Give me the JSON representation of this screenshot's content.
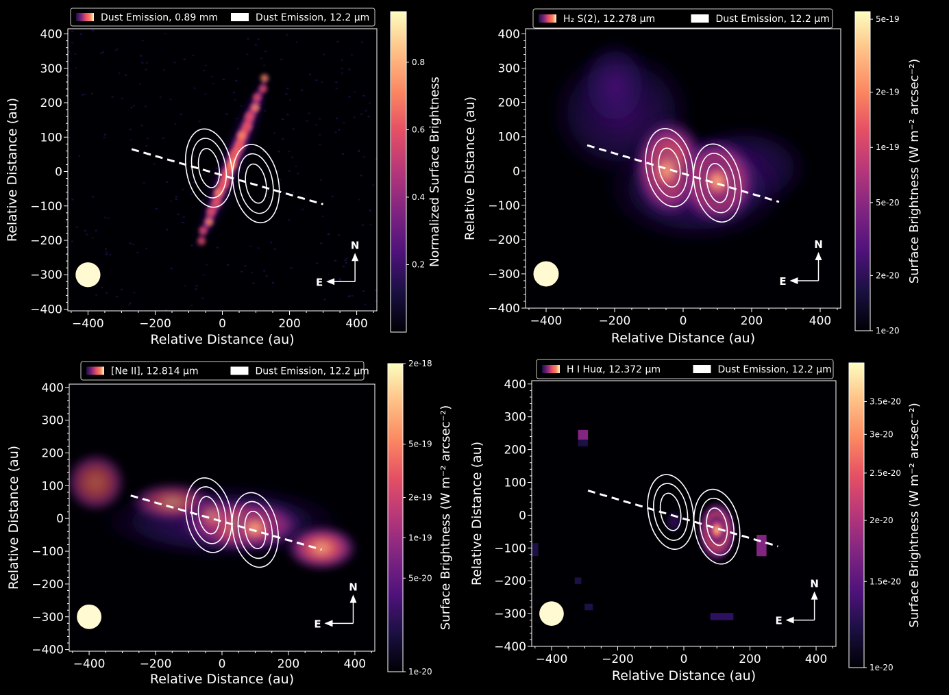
{
  "chart_data": [
    {
      "type": "heatmap",
      "panel": "top-left",
      "xlabel": "Relative Distance (au)",
      "ylabel": "Relative Distance (au)",
      "xlim": [
        -460,
        460
      ],
      "ylim": [
        -405,
        415
      ],
      "xticks": [
        -400,
        -200,
        0,
        200,
        400
      ],
      "yticks": [
        -400,
        -300,
        -200,
        -100,
        0,
        100,
        200,
        300,
        400
      ],
      "legend": [
        {
          "label": "Dust Emission, 0.89 mm",
          "swatch": "gradient"
        },
        {
          "label": "Dust Emission, 12.2 μm",
          "swatch": "white"
        }
      ],
      "colorbar": {
        "label": "Normalized Surface Brightness",
        "ticks": [
          "0.2",
          "0.4",
          "0.6",
          "0.8"
        ],
        "tick_values": [
          0.2,
          0.4,
          0.6,
          0.8
        ],
        "min": 0.0,
        "max": 0.95,
        "scale": "linear"
      },
      "emission_shape": "edge-on disk at ~20° from vertical, extending from (-60,-230) to (120,290) au",
      "outflow_axis": {
        "from": [
          -270,
          65
        ],
        "to": [
          300,
          -95
        ]
      },
      "beam": {
        "center": [
          -400,
          -300
        ],
        "radius_au": 37
      },
      "compass": {
        "north": "N",
        "east": "E",
        "origin": [
          395,
          -320
        ]
      }
    },
    {
      "type": "heatmap",
      "panel": "top-right",
      "xlabel": "Relative Distance (au)",
      "ylabel": "Relative Distance (au)",
      "xlim": [
        -460,
        460
      ],
      "ylim": [
        -400,
        415
      ],
      "xticks": [
        -400,
        -200,
        0,
        200,
        400
      ],
      "yticks": [
        -400,
        -300,
        -200,
        -100,
        0,
        100,
        200,
        300,
        400
      ],
      "legend": [
        {
          "label": "H₂ S(2), 12.278 μm",
          "swatch": "gradient"
        },
        {
          "label": "Dust Emission, 12.2 μm",
          "swatch": "white"
        }
      ],
      "colorbar": {
        "label": "Surface Brightness (W m⁻² arcsec⁻²)",
        "ticks": [
          "5e-19",
          "2e-19",
          "1e-19",
          "5e-20",
          "2e-20",
          "1e-20"
        ],
        "tick_values": [
          5e-19,
          2e-19,
          1e-19,
          5e-20,
          2e-20,
          1e-20
        ],
        "min": 1e-20,
        "max": 5.5e-19,
        "scale": "log"
      },
      "outflow_axis": {
        "from": [
          -280,
          75
        ],
        "to": [
          280,
          -90
        ]
      },
      "beam": {
        "center": [
          -400,
          -300
        ],
        "radius_au": 37
      },
      "compass": {
        "north": "N",
        "east": "E",
        "origin": [
          395,
          -320
        ]
      }
    },
    {
      "type": "heatmap",
      "panel": "bottom-left",
      "xlabel": "Relative Distance (au)",
      "ylabel": "Relative Distance (au)",
      "xlim": [
        -460,
        460
      ],
      "ylim": [
        -405,
        410
      ],
      "xticks": [
        -400,
        -200,
        0,
        200,
        400
      ],
      "yticks": [
        -400,
        -300,
        -200,
        -100,
        0,
        100,
        200,
        300,
        400
      ],
      "legend": [
        {
          "label": "[Ne II], 12.814 μm",
          "swatch": "gradient"
        },
        {
          "label": "Dust Emission, 12.2 μm",
          "swatch": "white"
        }
      ],
      "colorbar": {
        "label": "Surface Brightness (W m⁻² arcsec⁻²)",
        "ticks": [
          "2e-18",
          "5e-19",
          "2e-19",
          "1e-19",
          "5e-20",
          "1e-20"
        ],
        "tick_values": [
          2e-18,
          5e-19,
          2e-19,
          1e-19,
          5e-20,
          1e-20
        ],
        "min": 1e-20,
        "max": 2e-18,
        "scale": "log"
      },
      "outflow_axis": {
        "from": [
          -275,
          70
        ],
        "to": [
          300,
          -95
        ]
      },
      "beam": {
        "center": [
          -400,
          -300
        ],
        "radius_au": 37
      },
      "compass": {
        "north": "N",
        "east": "E",
        "origin": [
          395,
          -320
        ]
      }
    },
    {
      "type": "heatmap",
      "panel": "bottom-right",
      "xlabel": "Relative Distance (au)",
      "ylabel": "Relative Distance (au)",
      "xlim": [
        -460,
        460
      ],
      "ylim": [
        -400,
        410
      ],
      "xticks": [
        -400,
        -200,
        0,
        200,
        400
      ],
      "yticks": [
        -400,
        -300,
        -200,
        -100,
        0,
        100,
        200,
        300,
        400
      ],
      "legend": [
        {
          "label": "H I Huα, 12.372 μm",
          "swatch": "gradient"
        },
        {
          "label": "Dust Emission, 12.2 μm",
          "swatch": "white"
        }
      ],
      "colorbar": {
        "label": "Surface Brightness (W m⁻² arcsec⁻²)",
        "ticks": [
          "3.5e-20",
          "3e-20",
          "2.5e-20",
          "2e-20",
          "1.5e-20",
          "1e-20"
        ],
        "tick_values": [
          3.5e-20,
          3e-20,
          2.5e-20,
          2e-20,
          1.5e-20,
          1e-20
        ],
        "min": 1e-20,
        "max": 4.2e-20,
        "scale": "log"
      },
      "outflow_axis": {
        "from": [
          -290,
          75
        ],
        "to": [
          285,
          -95
        ]
      },
      "beam": {
        "center": [
          -400,
          -300
        ],
        "radius_au": 37
      },
      "compass": {
        "north": "N",
        "east": "E",
        "origin": [
          395,
          -320
        ]
      }
    }
  ],
  "contours_12um": {
    "levels": 3,
    "lobes": [
      {
        "center": [
          -40,
          10
        ],
        "tilt_deg": -10
      },
      {
        "center": [
          100,
          -35
        ],
        "tilt_deg": -10
      }
    ]
  },
  "colormap": "magma",
  "colors": {
    "background": "#000000",
    "contour": "#ffffff",
    "axis": "#ffffff",
    "beam": "#fffad2"
  }
}
